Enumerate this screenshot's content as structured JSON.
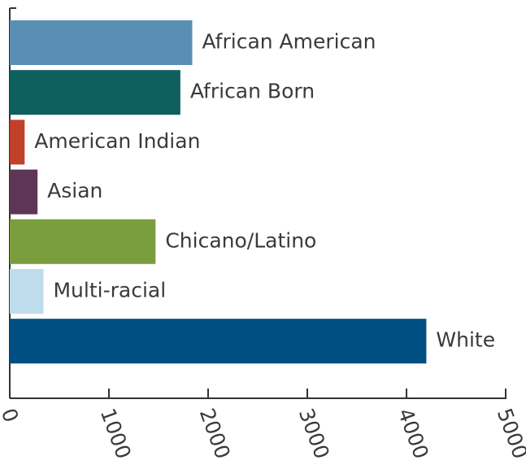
{
  "chart_data": {
    "type": "bar",
    "orientation": "horizontal",
    "categories": [
      "African American",
      "African Born",
      "American Indian",
      "Asian",
      "Chicano/Latino",
      "Multi-racial",
      "White"
    ],
    "values": [
      1840,
      1720,
      150,
      280,
      1470,
      340,
      4200
    ],
    "colors": [
      "#5a8fb4",
      "#0e5f5e",
      "#c0402a",
      "#5e3556",
      "#7a9e3e",
      "#bfdcec",
      "#004f82"
    ],
    "xlim": [
      0,
      5000
    ],
    "xticks": [
      0,
      1000,
      2000,
      3000,
      4000,
      5000
    ],
    "grid": false
  }
}
